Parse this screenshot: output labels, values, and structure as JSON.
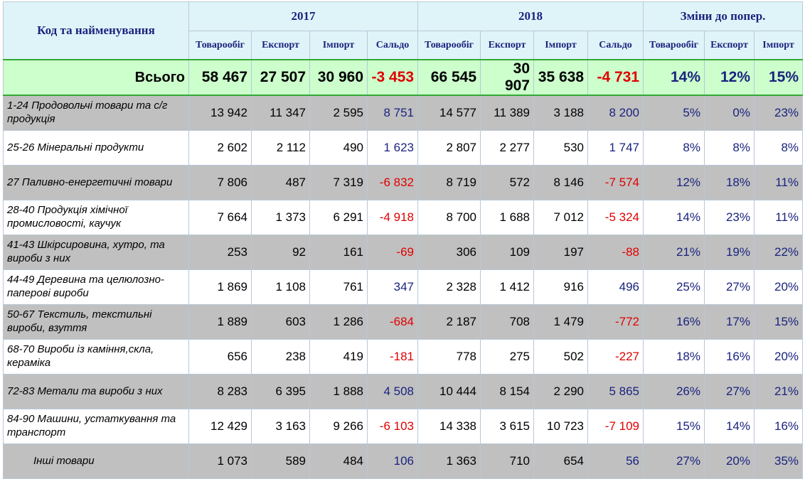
{
  "header": {
    "title": "Код та найменування",
    "groups": [
      "2017",
      "2018",
      "Зміни до попер."
    ],
    "columns": [
      "Товарообіг",
      "Експорт",
      "Імпорт",
      "Сальдо",
      "Товарообіг",
      "Експорт",
      "Імпорт",
      "Сальдо",
      "Товарообіг",
      "Експорт",
      "Імпорт"
    ]
  },
  "total": {
    "label": "Всього",
    "cells": [
      "58 467",
      "27 507",
      "30 960",
      "-3 453",
      "66 545",
      "30 907",
      "35 638",
      "-4 731",
      "14%",
      "12%",
      "15%"
    ]
  },
  "rows": [
    {
      "label": "1-24 Продовольчі товари та с/г продукція",
      "cells": [
        "13 942",
        "11 347",
        "2 595",
        "8 751",
        "14 577",
        "11 389",
        "3 188",
        "8 200",
        "5%",
        "0%",
        "23%"
      ]
    },
    {
      "label": "25-26 Мінеральні продукти",
      "cells": [
        "2 602",
        "2 112",
        "490",
        "1 623",
        "2 807",
        "2 277",
        "530",
        "1 747",
        "8%",
        "8%",
        "8%"
      ]
    },
    {
      "label": "27 Паливно-енергетичні товари",
      "cells": [
        "7 806",
        "487",
        "7 319",
        "-6 832",
        "8 719",
        "572",
        "8 146",
        "-7 574",
        "12%",
        "18%",
        "11%"
      ]
    },
    {
      "label": "28-40 Продукція хімічної промисловості, каучук",
      "cells": [
        "7 664",
        "1 373",
        "6 291",
        "-4 918",
        "8 700",
        "1 688",
        "7 012",
        "-5 324",
        "14%",
        "23%",
        "11%"
      ]
    },
    {
      "label": "41-43 Шкірсировина, хутро, та вироби з них",
      "cells": [
        "253",
        "92",
        "161",
        "-69",
        "306",
        "109",
        "197",
        "-88",
        "21%",
        "19%",
        "22%"
      ]
    },
    {
      "label": "44-49 Деревина та целюлозно-паперові вироби",
      "cells": [
        "1 869",
        "1 108",
        "761",
        "347",
        "2 328",
        "1 412",
        "916",
        "496",
        "25%",
        "27%",
        "20%"
      ]
    },
    {
      "label": "50-67 Текстиль, текстильні вироби, взуття",
      "cells": [
        "1 889",
        "603",
        "1 286",
        "-684",
        "2 187",
        "708",
        "1 479",
        "-772",
        "16%",
        "17%",
        "15%"
      ]
    },
    {
      "label": "68-70 Вироби із каміння,скла, кераміка",
      "cells": [
        "656",
        "238",
        "419",
        "-181",
        "778",
        "275",
        "502",
        "-227",
        "18%",
        "16%",
        "20%"
      ]
    },
    {
      "label": "72-83 Метали та вироби з них",
      "cells": [
        "8 283",
        "6 395",
        "1 888",
        "4 508",
        "10 444",
        "8 154",
        "2 290",
        "5 865",
        "26%",
        "27%",
        "21%"
      ]
    },
    {
      "label": "84-90 Машини, устаткування та транспорт",
      "cells": [
        "12 429",
        "3 163",
        "9 266",
        "-6 103",
        "14 338",
        "3 615",
        "10 723",
        "-7 109",
        "15%",
        "14%",
        "16%"
      ]
    },
    {
      "label": "Інші товари",
      "cells": [
        "1 073",
        "589",
        "484",
        "106",
        "1 363",
        "710",
        "654",
        "56",
        "27%",
        "20%",
        "35%"
      ]
    }
  ]
}
